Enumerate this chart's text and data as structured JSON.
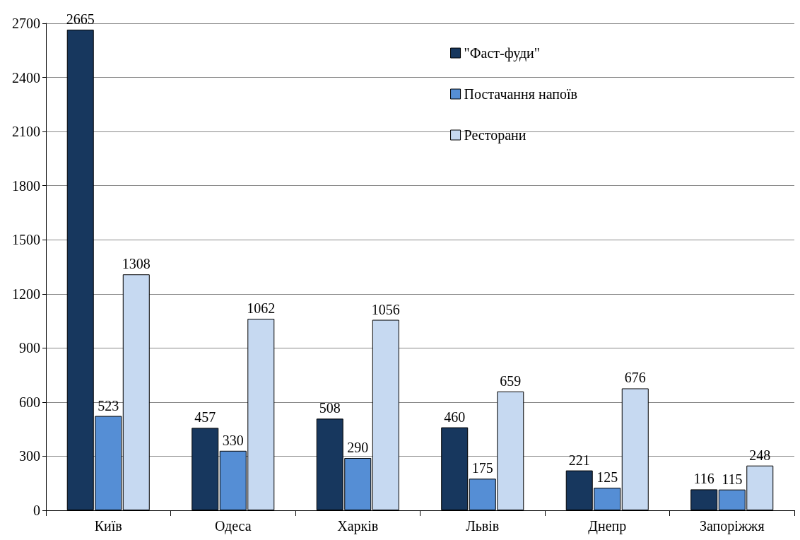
{
  "chart_data": {
    "type": "bar",
    "categories": [
      "Київ",
      "Одеса",
      "Харків",
      "Львів",
      "Днепр",
      "Запоріжжя"
    ],
    "series": [
      {
        "name": "\"Фаст-фуди\"",
        "color": "#17375e",
        "values": [
          2665,
          457,
          508,
          460,
          221,
          116
        ]
      },
      {
        "name": "Постачання напоїв",
        "color": "#558ed5",
        "values": [
          523,
          330,
          290,
          175,
          125,
          115
        ]
      },
      {
        "name": "Ресторани",
        "color": "#c6d9f1",
        "values": [
          1308,
          1062,
          1056,
          659,
          676,
          248
        ]
      }
    ],
    "ylim": [
      0,
      2700
    ],
    "yticks": [
      0,
      300,
      600,
      900,
      1200,
      1500,
      1800,
      2100,
      2400,
      2700
    ],
    "grid": "y",
    "legend": "top right",
    "data_labels": true
  }
}
